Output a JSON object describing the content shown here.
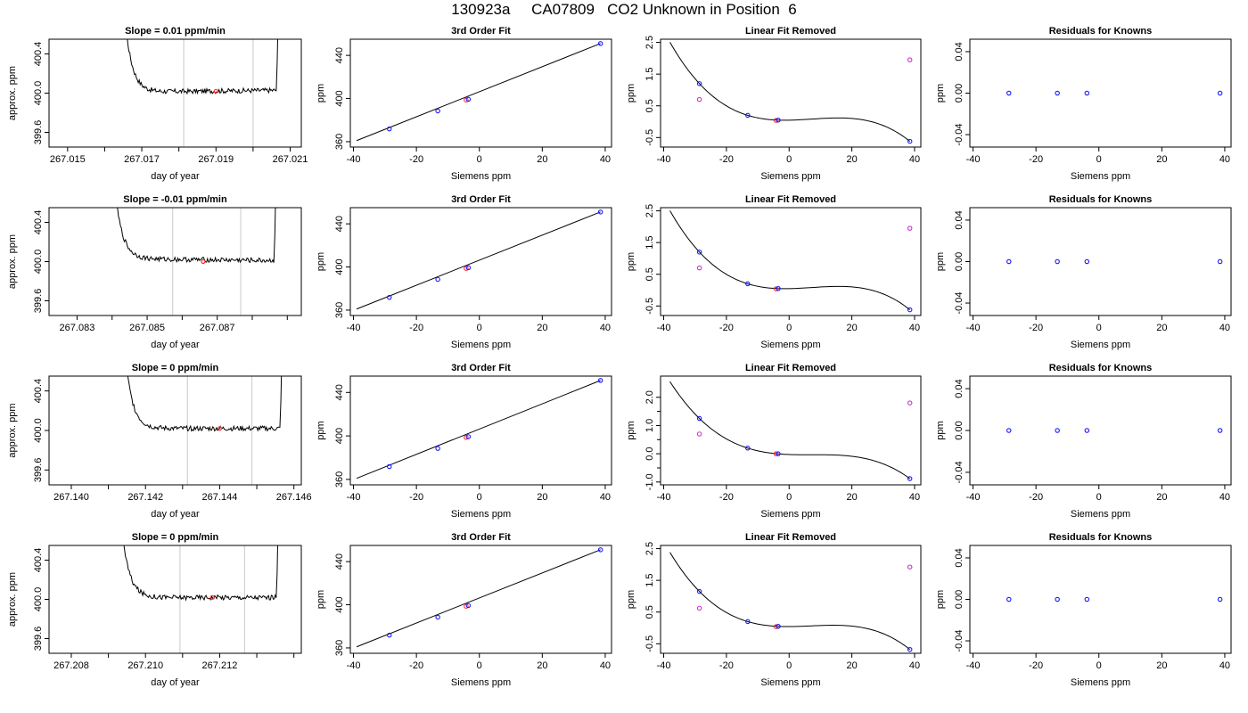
{
  "figure": {
    "title": "130923a     CA07809   CO2 Unknown in Position  6"
  },
  "colors": {
    "line": "#000000",
    "grid": "#c8c8c8",
    "known": "#1a1aff",
    "unknown": "#ff3030",
    "removed": "#cc33cc"
  },
  "chart_data": [
    {
      "row": 1,
      "col": 1,
      "type": "line",
      "title": "Slope =  0.01  ppm/min",
      "xlabel": "day of year",
      "ylabel": "approx. ppm",
      "xlim": [
        267.0145,
        267.0213
      ],
      "ylim": [
        399.45,
        400.55
      ],
      "xticks": [
        267.015,
        267.016,
        267.017,
        267.018,
        267.019,
        267.02,
        267.021
      ],
      "xticklabels": [
        "267.015",
        "",
        "267.017",
        "",
        "267.019",
        "",
        "267.021"
      ],
      "yticks": [
        399.6,
        400.0,
        400.4
      ],
      "yticklabels": [
        "399.6",
        "400.0",
        "400.4"
      ],
      "trace": {
        "x0": 267.0164,
        "x1": 267.0207,
        "plateau": 400.02,
        "slope": 0.01
      },
      "vlines": [
        267.01813,
        267.02
      ],
      "marker": {
        "x": 267.019,
        "y": 400.02
      }
    },
    {
      "row": 1,
      "col": 2,
      "type": "scatter",
      "title": "3rd Order Fit",
      "xlabel": "Siemens ppm",
      "ylabel": "ppm",
      "xlim": [
        -41,
        42
      ],
      "ylim": [
        355,
        455
      ],
      "xticks": [
        -40,
        -20,
        0,
        20,
        40
      ],
      "xticklabels": [
        "-40",
        "-20",
        "0",
        "20",
        "40"
      ],
      "yticks": [
        360,
        400,
        440
      ],
      "yticklabels": [
        "360",
        "400",
        "440"
      ],
      "fitline": [
        [
          -39,
          361
        ],
        [
          38.5,
          451
        ]
      ],
      "points": [
        {
          "x": -28.6,
          "y": 371.8,
          "c": "known"
        },
        {
          "x": -13.2,
          "y": 388.5,
          "c": "known"
        },
        {
          "x": -4.2,
          "y": 398.6,
          "c": "unknown"
        },
        {
          "x": -3.5,
          "y": 399.3,
          "c": "known"
        },
        {
          "x": 38.5,
          "y": 451,
          "c": "known"
        }
      ]
    },
    {
      "row": 1,
      "col": 3,
      "type": "scatter",
      "title": "Linear Fit Removed",
      "xlabel": "Siemens ppm",
      "ylabel": "ppm",
      "xlim": [
        -41,
        42
      ],
      "ylim": [
        -0.8,
        2.6
      ],
      "xticks": [
        -40,
        -20,
        0,
        20,
        40
      ],
      "xticklabels": [
        "-40",
        "-20",
        "0",
        "20",
        "40"
      ],
      "yticks": [
        -0.5,
        0.5,
        1.5,
        2.5
      ],
      "yticklabels": [
        "-0.5",
        "0.5",
        "1.5",
        "2.5"
      ],
      "curve": {
        "from": -38,
        "to": 38.5,
        "knots": [
          [
            -28.6,
            1.2
          ],
          [
            -13.2,
            0.2
          ],
          [
            -3.8,
            0.05
          ],
          [
            38.5,
            -0.62
          ]
        ],
        "slope_at_last": -0.11
      },
      "points": [
        {
          "x": -28.6,
          "y": 1.2,
          "c": "known"
        },
        {
          "x": -13.2,
          "y": 0.2,
          "c": "known"
        },
        {
          "x": -4.2,
          "y": 0.04,
          "c": "unknown"
        },
        {
          "x": -3.5,
          "y": 0.05,
          "c": "known"
        },
        {
          "x": 38.5,
          "y": -0.62,
          "c": "known"
        },
        {
          "x": -28.6,
          "y": 0.7,
          "c": "removed"
        },
        {
          "x": 38.5,
          "y": 1.95,
          "c": "removed"
        }
      ]
    },
    {
      "row": 1,
      "col": 4,
      "type": "scatter",
      "title": "Residuals for Knowns",
      "xlabel": "Siemens ppm",
      "ylabel": "ppm",
      "xlim": [
        -41,
        42
      ],
      "ylim": [
        -0.052,
        0.052
      ],
      "xticks": [
        -40,
        -20,
        0,
        20,
        40
      ],
      "xticklabels": [
        "-40",
        "-20",
        "0",
        "20",
        "40"
      ],
      "yticks": [
        -0.04,
        0.0,
        0.04
      ],
      "yticklabels": [
        "-0.04",
        "0.00",
        "0.04"
      ],
      "points": [
        {
          "x": -28.6,
          "y": 0,
          "c": "known"
        },
        {
          "x": -13.2,
          "y": 0,
          "c": "known"
        },
        {
          "x": -3.8,
          "y": 0,
          "c": "known"
        },
        {
          "x": 38.5,
          "y": 0,
          "c": "known"
        }
      ]
    },
    {
      "row": 2,
      "col": 1,
      "type": "line",
      "title": "Slope =  -0.01  ppm/min",
      "xlabel": "day of year",
      "ylabel": "approx. ppm",
      "xlim": [
        267.0822,
        267.0894
      ],
      "ylim": [
        399.45,
        400.55
      ],
      "xticks": [
        267.083,
        267.084,
        267.085,
        267.086,
        267.087,
        267.088,
        267.089
      ],
      "xticklabels": [
        "267.083",
        "",
        "267.085",
        "",
        "267.087",
        "",
        ""
      ],
      "yticks": [
        399.6,
        400.0,
        400.4
      ],
      "yticklabels": [
        "399.6",
        "400.0",
        "400.4"
      ],
      "trace": {
        "x0": 267.0839,
        "x1": 267.0887,
        "plateau": 400.02,
        "slope": -0.01
      },
      "vlines": [
        267.08573,
        267.08767
      ],
      "marker": {
        "x": 267.0866,
        "y": 400.0
      }
    },
    {
      "row": 2,
      "col": 2,
      "type": "scatter",
      "title": "3rd Order Fit",
      "xlabel": "Siemens ppm",
      "ylabel": "ppm",
      "xlim": [
        -41,
        42
      ],
      "ylim": [
        355,
        455
      ],
      "xticks": [
        -40,
        -20,
        0,
        20,
        40
      ],
      "xticklabels": [
        "-40",
        "-20",
        "0",
        "20",
        "40"
      ],
      "yticks": [
        360,
        400,
        440
      ],
      "yticklabels": [
        "360",
        "400",
        "440"
      ],
      "fitline": [
        [
          -39,
          361
        ],
        [
          38.5,
          451
        ]
      ],
      "points": [
        {
          "x": -28.6,
          "y": 371.8,
          "c": "known"
        },
        {
          "x": -13.2,
          "y": 388.5,
          "c": "known"
        },
        {
          "x": -4.2,
          "y": 398.6,
          "c": "unknown"
        },
        {
          "x": -3.5,
          "y": 399.3,
          "c": "known"
        },
        {
          "x": 38.5,
          "y": 451,
          "c": "known"
        }
      ]
    },
    {
      "row": 2,
      "col": 3,
      "type": "scatter",
      "title": "Linear Fit Removed",
      "xlabel": "Siemens ppm",
      "ylabel": "ppm",
      "xlim": [
        -41,
        42
      ],
      "ylim": [
        -0.8,
        2.6
      ],
      "xticks": [
        -40,
        -20,
        0,
        20,
        40
      ],
      "xticklabels": [
        "-40",
        "-20",
        "0",
        "20",
        "40"
      ],
      "yticks": [
        -0.5,
        0.5,
        1.5,
        2.5
      ],
      "yticklabels": [
        "-0.5",
        "0.5",
        "1.5",
        "2.5"
      ],
      "curve": {
        "from": -38,
        "to": 38.5,
        "knots": [
          [
            -28.6,
            1.2
          ],
          [
            -13.2,
            0.2
          ],
          [
            -3.8,
            0.05
          ],
          [
            38.5,
            -0.62
          ]
        ],
        "slope_at_last": -0.11
      },
      "points": [
        {
          "x": -28.6,
          "y": 1.2,
          "c": "known"
        },
        {
          "x": -13.2,
          "y": 0.2,
          "c": "known"
        },
        {
          "x": -4.2,
          "y": 0.04,
          "c": "unknown"
        },
        {
          "x": -3.5,
          "y": 0.05,
          "c": "known"
        },
        {
          "x": 38.5,
          "y": -0.62,
          "c": "known"
        },
        {
          "x": -28.6,
          "y": 0.7,
          "c": "removed"
        },
        {
          "x": 38.5,
          "y": 1.95,
          "c": "removed"
        }
      ]
    },
    {
      "row": 2,
      "col": 4,
      "type": "scatter",
      "title": "Residuals for Knowns",
      "xlabel": "Siemens ppm",
      "ylabel": "ppm",
      "xlim": [
        -41,
        42
      ],
      "ylim": [
        -0.052,
        0.052
      ],
      "xticks": [
        -40,
        -20,
        0,
        20,
        40
      ],
      "xticklabels": [
        "-40",
        "-20",
        "0",
        "20",
        "40"
      ],
      "yticks": [
        -0.04,
        0.0,
        0.04
      ],
      "yticklabels": [
        "-0.04",
        "0.00",
        "0.04"
      ],
      "points": [
        {
          "x": -28.6,
          "y": 0,
          "c": "known"
        },
        {
          "x": -13.2,
          "y": 0,
          "c": "known"
        },
        {
          "x": -3.8,
          "y": 0,
          "c": "known"
        },
        {
          "x": 38.5,
          "y": 0,
          "c": "known"
        }
      ]
    },
    {
      "row": 3,
      "col": 1,
      "type": "line",
      "title": "Slope =  0  ppm/min",
      "xlabel": "day of year",
      "ylabel": "approx. ppm",
      "xlim": [
        267.1394,
        267.1462
      ],
      "ylim": [
        399.45,
        400.55
      ],
      "xticks": [
        267.14,
        267.141,
        267.142,
        267.143,
        267.144,
        267.145,
        267.146
      ],
      "xticklabels": [
        "267.140",
        "",
        "267.142",
        "",
        "267.144",
        "",
        "267.146"
      ],
      "yticks": [
        399.6,
        400.0,
        400.4
      ],
      "yticklabels": [
        "399.6",
        "400.0",
        "400.4"
      ],
      "trace": {
        "x0": 267.1413,
        "x1": 267.1457,
        "plateau": 400.02,
        "slope": 0
      },
      "vlines": [
        267.14313,
        267.14487
      ],
      "marker": {
        "x": 267.144,
        "y": 400.02
      }
    },
    {
      "row": 3,
      "col": 2,
      "type": "scatter",
      "title": "3rd Order Fit",
      "xlabel": "Siemens ppm",
      "ylabel": "ppm",
      "xlim": [
        -41,
        42
      ],
      "ylim": [
        355,
        455
      ],
      "xticks": [
        -40,
        -20,
        0,
        20,
        40
      ],
      "xticklabels": [
        "-40",
        "-20",
        "0",
        "20",
        "40"
      ],
      "yticks": [
        360,
        400,
        440
      ],
      "yticklabels": [
        "360",
        "400",
        "440"
      ],
      "fitline": [
        [
          -39,
          361
        ],
        [
          38.5,
          451
        ]
      ],
      "points": [
        {
          "x": -28.6,
          "y": 371.8,
          "c": "known"
        },
        {
          "x": -13.2,
          "y": 388.5,
          "c": "known"
        },
        {
          "x": -4.2,
          "y": 398.6,
          "c": "unknown"
        },
        {
          "x": -3.5,
          "y": 399.3,
          "c": "known"
        },
        {
          "x": 38.5,
          "y": 451,
          "c": "known"
        }
      ]
    },
    {
      "row": 3,
      "col": 3,
      "type": "scatter",
      "title": "Linear Fit Removed",
      "xlabel": "Siemens ppm",
      "ylabel": "ppm",
      "xlim": [
        -41,
        42
      ],
      "ylim": [
        -1.1,
        2.75
      ],
      "xticks": [
        -40,
        -20,
        0,
        20,
        40
      ],
      "xticklabels": [
        "-40",
        "-20",
        "0",
        "20",
        "40"
      ],
      "yticks": [
        -1.0,
        0.0,
        1.0,
        2.0
      ],
      "yticklabels": [
        "-1.0",
        "0.0",
        "1.0",
        "2.0"
      ],
      "yminorticks": [
        -0.5,
        0.5,
        1.5
      ],
      "curve": {
        "from": -38,
        "to": 38.5,
        "knots": [
          [
            -28.6,
            1.25
          ],
          [
            -13.2,
            0.2
          ],
          [
            -3.8,
            0.0
          ],
          [
            38.5,
            -0.88
          ]
        ],
        "slope_at_last": -0.12
      },
      "points": [
        {
          "x": -28.6,
          "y": 1.25,
          "c": "known"
        },
        {
          "x": -13.2,
          "y": 0.2,
          "c": "known"
        },
        {
          "x": -4.2,
          "y": 0.0,
          "c": "unknown"
        },
        {
          "x": -3.5,
          "y": 0.0,
          "c": "known"
        },
        {
          "x": 38.5,
          "y": -0.88,
          "c": "known"
        },
        {
          "x": -28.6,
          "y": 0.7,
          "c": "removed"
        },
        {
          "x": 38.5,
          "y": 1.8,
          "c": "removed"
        }
      ]
    },
    {
      "row": 3,
      "col": 4,
      "type": "scatter",
      "title": "Residuals for Knowns",
      "xlabel": "Siemens ppm",
      "ylabel": "ppm",
      "xlim": [
        -41,
        42
      ],
      "ylim": [
        -0.052,
        0.052
      ],
      "xticks": [
        -40,
        -20,
        0,
        20,
        40
      ],
      "xticklabels": [
        "-40",
        "-20",
        "0",
        "20",
        "40"
      ],
      "yticks": [
        -0.04,
        0.0,
        0.04
      ],
      "yticklabels": [
        "-0.04",
        "0.00",
        "0.04"
      ],
      "points": [
        {
          "x": -28.6,
          "y": 0,
          "c": "known"
        },
        {
          "x": -13.2,
          "y": 0,
          "c": "known"
        },
        {
          "x": -3.8,
          "y": 0,
          "c": "known"
        },
        {
          "x": 38.5,
          "y": 0,
          "c": "known"
        }
      ]
    },
    {
      "row": 4,
      "col": 1,
      "type": "line",
      "title": "Slope =  0  ppm/min",
      "xlabel": "day of year",
      "ylabel": "approx. ppm",
      "xlim": [
        267.2074,
        267.2142
      ],
      "ylim": [
        399.45,
        400.55
      ],
      "xticks": [
        267.208,
        267.209,
        267.21,
        267.211,
        267.212,
        267.213,
        267.214
      ],
      "xticklabels": [
        "267.208",
        "",
        "267.210",
        "",
        "267.212",
        "",
        ""
      ],
      "yticks": [
        399.6,
        400.0,
        400.4
      ],
      "yticklabels": [
        "399.6",
        "400.0",
        "400.4"
      ],
      "trace": {
        "x0": 267.2092,
        "x1": 267.2136,
        "plateau": 400.02,
        "slope": 0
      },
      "vlines": [
        267.21093,
        267.21267
      ],
      "marker": {
        "x": 267.2118,
        "y": 400.02
      }
    },
    {
      "row": 4,
      "col": 2,
      "type": "scatter",
      "title": "3rd Order Fit",
      "xlabel": "Siemens ppm",
      "ylabel": "ppm",
      "xlim": [
        -41,
        42
      ],
      "ylim": [
        355,
        455
      ],
      "xticks": [
        -40,
        -20,
        0,
        20,
        40
      ],
      "xticklabels": [
        "-40",
        "-20",
        "0",
        "20",
        "40"
      ],
      "yticks": [
        360,
        400,
        440
      ],
      "yticklabels": [
        "360",
        "400",
        "440"
      ],
      "fitline": [
        [
          -39,
          361
        ],
        [
          38.5,
          451
        ]
      ],
      "points": [
        {
          "x": -28.6,
          "y": 371.8,
          "c": "known"
        },
        {
          "x": -13.2,
          "y": 388.5,
          "c": "known"
        },
        {
          "x": -4.2,
          "y": 398.6,
          "c": "unknown"
        },
        {
          "x": -3.5,
          "y": 399.3,
          "c": "known"
        },
        {
          "x": 38.5,
          "y": 451,
          "c": "known"
        }
      ]
    },
    {
      "row": 4,
      "col": 3,
      "type": "scatter",
      "title": "Linear Fit Removed",
      "xlabel": "Siemens ppm",
      "ylabel": "ppm",
      "xlim": [
        -41,
        42
      ],
      "ylim": [
        -0.8,
        2.6
      ],
      "xticks": [
        -40,
        -20,
        0,
        20,
        40
      ],
      "xticklabels": [
        "-40",
        "-20",
        "0",
        "20",
        "40"
      ],
      "yticks": [
        -0.5,
        0.5,
        1.5,
        2.5
      ],
      "yticklabels": [
        "-0.5",
        "0.5",
        "1.5",
        "2.5"
      ],
      "curve": {
        "from": -38,
        "to": 38.5,
        "knots": [
          [
            -28.6,
            1.15
          ],
          [
            -13.2,
            0.2
          ],
          [
            -3.8,
            0.05
          ],
          [
            38.5,
            -0.68
          ]
        ],
        "slope_at_last": -0.11
      },
      "points": [
        {
          "x": -28.6,
          "y": 1.15,
          "c": "known"
        },
        {
          "x": -13.2,
          "y": 0.2,
          "c": "known"
        },
        {
          "x": -4.2,
          "y": 0.04,
          "c": "unknown"
        },
        {
          "x": -3.5,
          "y": 0.05,
          "c": "known"
        },
        {
          "x": 38.5,
          "y": -0.68,
          "c": "known"
        },
        {
          "x": -28.6,
          "y": 0.62,
          "c": "removed"
        },
        {
          "x": 38.5,
          "y": 1.92,
          "c": "removed"
        }
      ]
    },
    {
      "row": 4,
      "col": 4,
      "type": "scatter",
      "title": "Residuals for Knowns",
      "xlabel": "Siemens ppm",
      "ylabel": "ppm",
      "xlim": [
        -41,
        42
      ],
      "ylim": [
        -0.052,
        0.052
      ],
      "xticks": [
        -40,
        -20,
        0,
        20,
        40
      ],
      "xticklabels": [
        "-40",
        "-20",
        "0",
        "20",
        "40"
      ],
      "yticks": [
        -0.04,
        0.0,
        0.04
      ],
      "yticklabels": [
        "-0.04",
        "0.00",
        "0.04"
      ],
      "points": [
        {
          "x": -28.6,
          "y": 0,
          "c": "known"
        },
        {
          "x": -13.2,
          "y": 0,
          "c": "known"
        },
        {
          "x": -3.8,
          "y": 0,
          "c": "known"
        },
        {
          "x": 38.5,
          "y": 0,
          "c": "known"
        }
      ]
    }
  ]
}
